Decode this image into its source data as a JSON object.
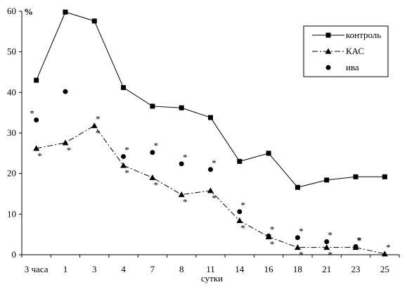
{
  "chart_data": {
    "type": "line",
    "xlabel": "сутки",
    "ylabel": "%",
    "ylim": [
      0,
      60
    ],
    "yticks": [
      0,
      10,
      20,
      30,
      40,
      50,
      60
    ],
    "categories": [
      "3 часа",
      "1",
      "3",
      "4",
      "7",
      "8",
      "11",
      "14",
      "16",
      "18",
      "21",
      "23",
      "25"
    ],
    "legend_position": "top-right",
    "grid": false,
    "series": [
      {
        "name": "контроль",
        "marker": "square",
        "line": "solid",
        "values": [
          43,
          59.8,
          57.6,
          41.2,
          36.6,
          36.2,
          33.8,
          23,
          25,
          16.6,
          18.4,
          19.2,
          19.2
        ]
      },
      {
        "name": "КАС",
        "marker": "triangle",
        "line": "dash-dot",
        "values": [
          26.2,
          27.6,
          31.8,
          22,
          19,
          14.8,
          15.8,
          8.4,
          4.4,
          1.8,
          1.8,
          1.8,
          0.2
        ],
        "stars": [
          {
            "i": 0,
            "pos": "below"
          },
          {
            "i": 1,
            "pos": "below"
          },
          {
            "i": 2,
            "pos": "above"
          },
          {
            "i": 2,
            "pos": "below"
          },
          {
            "i": 3,
            "pos": "below"
          },
          {
            "i": 4,
            "pos": "below"
          },
          {
            "i": 5,
            "pos": "below"
          },
          {
            "i": 6,
            "pos": "below"
          },
          {
            "i": 7,
            "pos": "below"
          },
          {
            "i": 8,
            "pos": "below"
          },
          {
            "i": 9,
            "pos": "below"
          },
          {
            "i": 10,
            "pos": "below"
          },
          {
            "i": 11,
            "pos": "above"
          },
          {
            "i": 12,
            "pos": "above"
          }
        ]
      },
      {
        "name": "ива",
        "marker": "circle",
        "line": "none",
        "values": [
          33.2,
          40.2,
          null,
          24.2,
          25.2,
          22.4,
          21,
          10.6,
          4.6,
          4.2,
          3.2,
          2,
          null
        ],
        "stars": [
          {
            "i": 0,
            "pos": "above"
          },
          {
            "i": 3,
            "pos": "above"
          },
          {
            "i": 4,
            "pos": "above"
          },
          {
            "i": 5,
            "pos": "above"
          },
          {
            "i": 6,
            "pos": "above"
          },
          {
            "i": 7,
            "pos": "above"
          },
          {
            "i": 8,
            "pos": "above"
          },
          {
            "i": 9,
            "pos": "above"
          },
          {
            "i": 10,
            "pos": "above"
          },
          {
            "i": 11,
            "pos": "above"
          }
        ]
      }
    ],
    "star_symbol": "*"
  }
}
